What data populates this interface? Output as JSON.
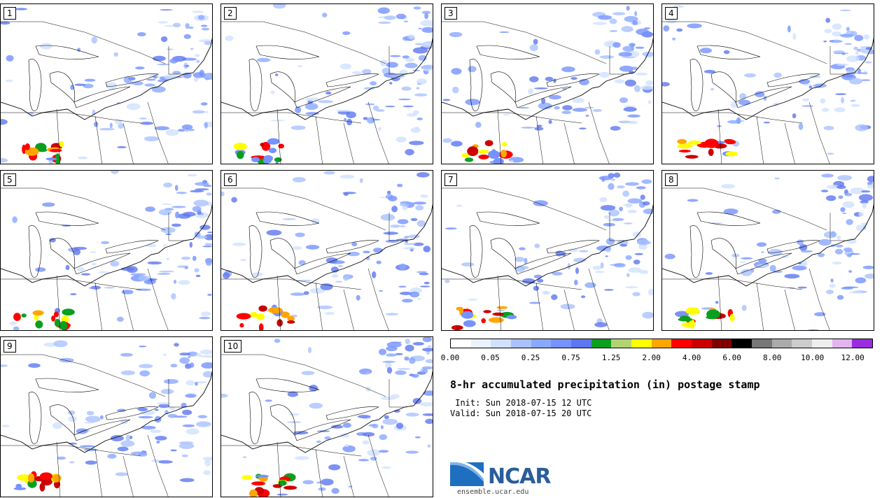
{
  "members": [
    {
      "label": "1"
    },
    {
      "label": "2"
    },
    {
      "label": "3"
    },
    {
      "label": "4"
    },
    {
      "label": "5"
    },
    {
      "label": "6"
    },
    {
      "label": "7"
    },
    {
      "label": "8"
    },
    {
      "label": "9"
    },
    {
      "label": "10"
    }
  ],
  "colorbar": {
    "colors": [
      "#ffffff",
      "#eaf2ff",
      "#d0e1ff",
      "#a9c2ff",
      "#8aa8ff",
      "#7592ff",
      "#5c77f0",
      "#0a9f1f",
      "#b3d373",
      "#ffff00",
      "#ffa500",
      "#ff0000",
      "#cc0000",
      "#800000",
      "#000000",
      "#777777",
      "#aaaaaa",
      "#cccccc",
      "#eeeeee",
      "#e3b3f0",
      "#9a2ce0"
    ],
    "ticks": [
      "0.00",
      "0.05",
      "0.25",
      "0.75",
      "1.25",
      "2.00",
      "4.00",
      "6.00",
      "8.00",
      "10.00",
      "12.00"
    ]
  },
  "title": "8-hr accumulated precipitation (in) postage stamp",
  "init": " Init: Sun 2018-07-15 12 UTC",
  "valid": "Valid: Sun 2018-07-15 20 UTC",
  "logo": {
    "text": "NCAR",
    "site": "ensemble.ucar.edu"
  }
}
